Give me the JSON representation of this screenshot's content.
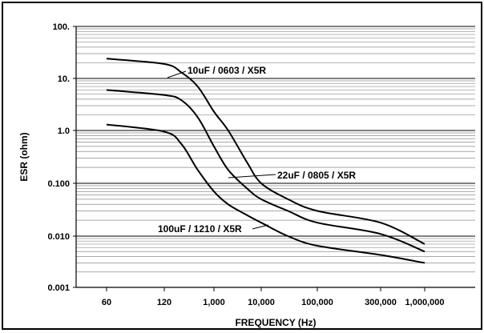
{
  "chart_data": {
    "type": "line",
    "title": "",
    "xlabel": "FREQUENCY (Hz)",
    "ylabel": "ESR (ohm)",
    "x_scale": "log",
    "y_scale": "log",
    "x_ticks": [
      {
        "value": 60,
        "label": "60"
      },
      {
        "value": 120,
        "label": "120"
      },
      {
        "value": 1000,
        "label": "1,000"
      },
      {
        "value": 10000,
        "label": "10,000"
      },
      {
        "value": 100000,
        "label": "100,000"
      },
      {
        "value": 300000,
        "label": "300,000"
      },
      {
        "value": 1000000,
        "label": "1,000,000"
      }
    ],
    "y_ticks": [
      {
        "value": 0.001,
        "label": "0.001"
      },
      {
        "value": 0.01,
        "label": "0.010"
      },
      {
        "value": 0.1,
        "label": "0.100"
      },
      {
        "value": 1,
        "label": "1.0"
      },
      {
        "value": 10,
        "label": "10."
      },
      {
        "value": 100,
        "label": "100."
      }
    ],
    "ylim": [
      0.001,
      100
    ],
    "grid": true,
    "series": [
      {
        "name": "10uF / 0603 /  X5R",
        "color": "#000000",
        "points": [
          [
            60,
            24
          ],
          [
            120,
            19
          ],
          [
            250,
            13
          ],
          [
            500,
            7
          ],
          [
            1000,
            2.3
          ],
          [
            2000,
            1.0
          ],
          [
            5000,
            0.25
          ],
          [
            10000,
            0.1
          ],
          [
            30000,
            0.05
          ],
          [
            100000,
            0.03
          ],
          [
            300000,
            0.018
          ],
          [
            1000000,
            0.007
          ]
        ]
      },
      {
        "name": "22uF / 0805 /  X5R",
        "color": "#000000",
        "points": [
          [
            60,
            6
          ],
          [
            120,
            4.8
          ],
          [
            250,
            3.8
          ],
          [
            500,
            1.8
          ],
          [
            1000,
            0.5
          ],
          [
            2000,
            0.18
          ],
          [
            5000,
            0.08
          ],
          [
            10000,
            0.05
          ],
          [
            30000,
            0.03
          ],
          [
            100000,
            0.018
          ],
          [
            300000,
            0.011
          ],
          [
            1000000,
            0.005
          ]
        ]
      },
      {
        "name": "100uF / 1210 /  X5R",
        "color": "#000000",
        "points": [
          [
            60,
            1.3
          ],
          [
            120,
            0.95
          ],
          [
            250,
            0.55
          ],
          [
            500,
            0.18
          ],
          [
            1000,
            0.07
          ],
          [
            2000,
            0.04
          ],
          [
            5000,
            0.025
          ],
          [
            10000,
            0.018
          ],
          [
            30000,
            0.01
          ],
          [
            100000,
            0.0065
          ],
          [
            300000,
            0.0043
          ],
          [
            1000000,
            0.003
          ]
        ]
      }
    ],
    "annotations": [
      {
        "text": "10uF / 0603 /  X5R",
        "series": 0
      },
      {
        "text": "22uF / 0805 /  X5R",
        "series": 1
      },
      {
        "text": "100uF / 1210 /  X5R",
        "series": 2
      }
    ]
  }
}
